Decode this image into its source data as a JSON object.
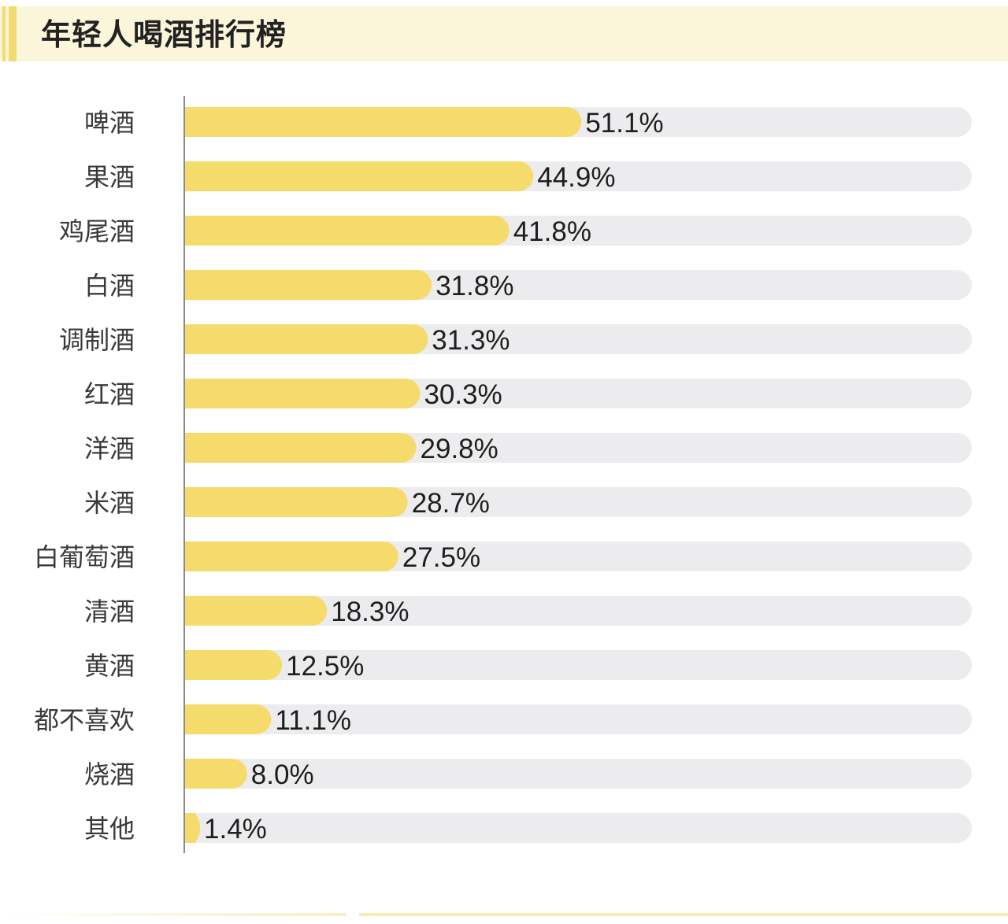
{
  "title": "年轻人喝酒排行榜",
  "colors": {
    "bar": "#f5db6c",
    "track": "#ececee",
    "header_band": "#fbf6da",
    "header_rule": "#f2dc72",
    "axis": "#8a8a8a"
  },
  "chart_data": {
    "type": "bar",
    "orientation": "horizontal",
    "title": "年轻人喝酒排行榜",
    "unit": "%",
    "grid": false,
    "xlim": [
      0,
      100
    ],
    "categories": [
      "啤酒",
      "果酒",
      "鸡尾酒",
      "白酒",
      "调制酒",
      "红酒",
      "洋酒",
      "米酒",
      "白葡萄酒",
      "清酒",
      "黄酒",
      "都不喜欢",
      "烧酒",
      "其他"
    ],
    "values": [
      51.1,
      44.9,
      41.8,
      31.8,
      31.3,
      30.3,
      29.8,
      28.7,
      27.5,
      18.3,
      12.5,
      11.1,
      8.0,
      1.4
    ],
    "value_labels": [
      "51.1%",
      "44.9%",
      "41.8%",
      "31.8%",
      "31.3%",
      "30.3%",
      "29.8%",
      "28.7%",
      "27.5%",
      "18.3%",
      "12.5%",
      "11.1%",
      "8.0%",
      "1.4%"
    ]
  }
}
